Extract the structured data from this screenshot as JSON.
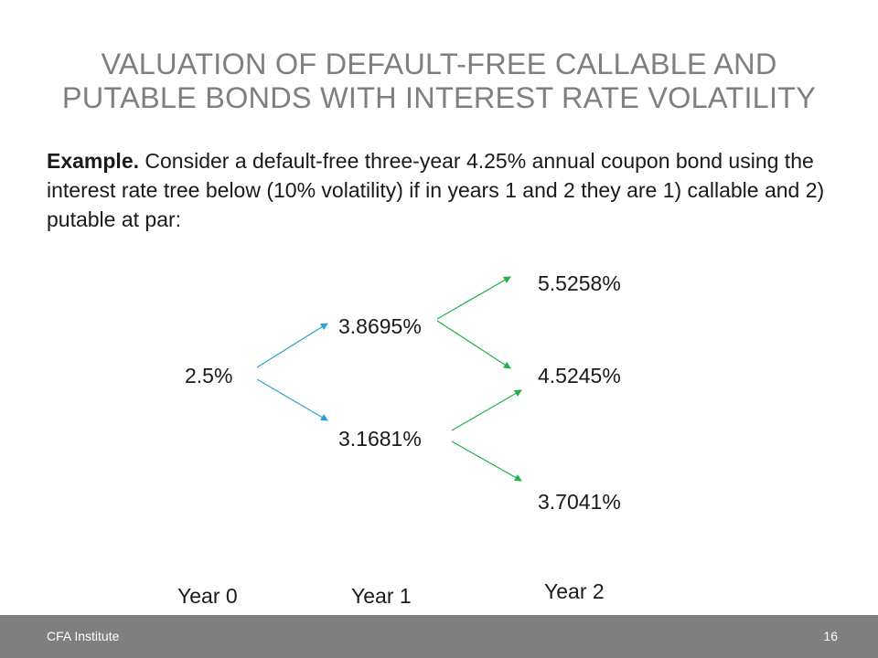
{
  "title": {
    "line1": "VALUATION OF DEFAULT-FREE CALLABLE AND",
    "line2": "PUTABLE BONDS WITH INTEREST RATE VOLATILITY"
  },
  "body": {
    "lead": "Example.",
    "text": "Consider a default-free three-year 4.25% annual coupon bond using the interest rate tree below (10% volatility) if in years 1 and 2 they are 1) callable and 2) putable at par:"
  },
  "tree": {
    "year0": {
      "rate": "2.5%"
    },
    "year1": {
      "up": "3.8695%",
      "down": "3.1681%"
    },
    "year2": {
      "uu": "5.5258%",
      "ud": "4.5245%",
      "dd": "3.7041%"
    },
    "colors": {
      "year0_branches": "#2e9fd0",
      "year1_branches": "#22b04a"
    }
  },
  "axis": {
    "year0": "Year 0",
    "year1": "Year 1",
    "year2": "Year 2"
  },
  "footer": {
    "org": "CFA Institute",
    "page": "16",
    "background": "#7f7f7f"
  }
}
